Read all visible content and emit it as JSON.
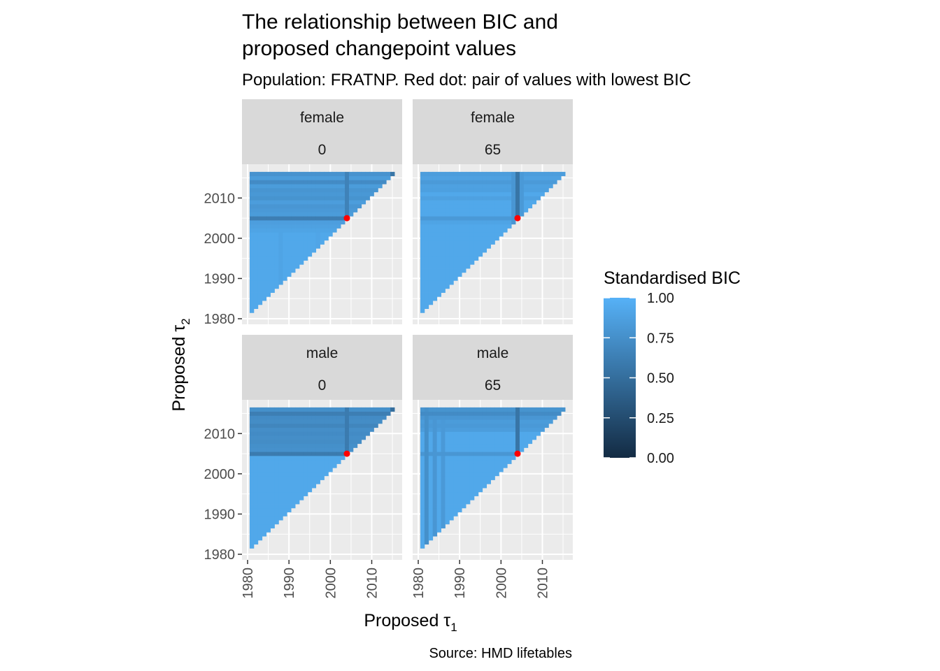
{
  "chart_data": {
    "type": "heatmap",
    "title_line1": "The relationship between BIC and",
    "title_line2": "proposed changepoint values",
    "subtitle": "Population: FRATNP. Red dot: pair of values with lowest BIC",
    "xlabel": "Proposed τ",
    "xlabel_sub": "1",
    "ylabel": "Proposed τ",
    "ylabel_sub": "2",
    "caption": "Source: HMD lifetables",
    "x_ticks": [
      "1980",
      "1990",
      "2000",
      "2010"
    ],
    "y_ticks": [
      "1980",
      "1990",
      "2000",
      "2010"
    ],
    "x_tick_values": [
      1980,
      1990,
      2000,
      2010
    ],
    "y_tick_values": [
      1980,
      1990,
      2000,
      2010
    ],
    "xlim": [
      1980,
      2016
    ],
    "ylim": [
      1980,
      2017
    ],
    "tau1_range": [
      1981,
      2015
    ],
    "tau2_offset": 1,
    "colors": {
      "low": "#132B43",
      "high": "#56B1F7",
      "min_point": "#FF0000",
      "panel_bg": "#EBEBEB",
      "strip_bg": "#D9D9D9",
      "grid": "#FFFFFF"
    },
    "legend": {
      "title": "Standardised BIC",
      "placement": "right",
      "ticks": [
        "1.00",
        "0.75",
        "0.50",
        "0.25",
        "0.00"
      ],
      "tick_values": [
        1.0,
        0.75,
        0.5,
        0.25,
        0.0
      ]
    },
    "panels": [
      {
        "sex": "female",
        "age": "0",
        "min_point": {
          "tau1": 2004,
          "tau2": 2005
        },
        "row_values": [
          {
            "tau2": 2016,
            "value": 0.77
          },
          {
            "tau2": 2015,
            "value": 0.84
          },
          {
            "tau2": 2014,
            "value": 0.72
          },
          {
            "tau2": 2013,
            "value": 0.84
          },
          {
            "tau2": 2012,
            "value": 0.79
          },
          {
            "tau2": 2011,
            "value": 0.81
          },
          {
            "tau2": 2010,
            "value": 0.78
          },
          {
            "tau2": 2009,
            "value": 0.85
          },
          {
            "tau2": 2008,
            "value": 0.8
          },
          {
            "tau2": 2007,
            "value": 0.82
          },
          {
            "tau2": 2006,
            "value": 0.84
          },
          {
            "tau2": 2005,
            "value": 0.62
          },
          {
            "tau2": 2004,
            "value": 0.86
          },
          {
            "tau2": 2003,
            "value": 0.88
          },
          {
            "tau2": 2002,
            "value": 0.9
          }
        ],
        "col_values": [
          {
            "tau1": 1988,
            "value": 0.9
          },
          {
            "tau1": 1997,
            "value": 0.91
          },
          {
            "tau1": 2004,
            "value": 0.65
          },
          {
            "tau1": 2015,
            "value": 0.55
          }
        ]
      },
      {
        "sex": "female",
        "age": "65",
        "min_point": {
          "tau1": 2004,
          "tau2": 2005
        },
        "row_values": [
          {
            "tau2": 2016,
            "value": 0.85
          },
          {
            "tau2": 2015,
            "value": 0.88
          },
          {
            "tau2": 2014,
            "value": 0.83
          },
          {
            "tau2": 2013,
            "value": 0.88
          },
          {
            "tau2": 2012,
            "value": 0.87
          },
          {
            "tau2": 2010,
            "value": 0.88
          },
          {
            "tau2": 2005,
            "value": 0.82
          },
          {
            "tau2": 2004,
            "value": 0.9
          }
        ],
        "col_values": [
          {
            "tau1": 2004,
            "value": 0.55
          },
          {
            "tau1": 2003,
            "value": 0.8
          },
          {
            "tau1": 2005,
            "value": 0.82
          }
        ]
      },
      {
        "sex": "male",
        "age": "0",
        "min_point": {
          "tau1": 2004,
          "tau2": 2005
        },
        "row_values": [
          {
            "tau2": 2016,
            "value": 0.75
          },
          {
            "tau2": 2015,
            "value": 0.62
          },
          {
            "tau2": 2014,
            "value": 0.72
          },
          {
            "tau2": 2013,
            "value": 0.73
          },
          {
            "tau2": 2012,
            "value": 0.68
          },
          {
            "tau2": 2011,
            "value": 0.74
          },
          {
            "tau2": 2010,
            "value": 0.72
          },
          {
            "tau2": 2009,
            "value": 0.74
          },
          {
            "tau2": 2008,
            "value": 0.73
          },
          {
            "tau2": 2007,
            "value": 0.75
          },
          {
            "tau2": 2006,
            "value": 0.76
          },
          {
            "tau2": 2005,
            "value": 0.6
          }
        ],
        "col_values": [
          {
            "tau1": 2004,
            "value": 0.6
          },
          {
            "tau1": 2015,
            "value": 0.5
          }
        ]
      },
      {
        "sex": "male",
        "age": "65",
        "min_point": {
          "tau1": 2004,
          "tau2": 2005
        },
        "row_values": [
          {
            "tau2": 2016,
            "value": 0.78
          },
          {
            "tau2": 2015,
            "value": 0.72
          },
          {
            "tau2": 2014,
            "value": 0.8
          },
          {
            "tau2": 2013,
            "value": 0.84
          },
          {
            "tau2": 2012,
            "value": 0.82
          },
          {
            "tau2": 2011,
            "value": 0.85
          },
          {
            "tau2": 2005,
            "value": 0.8
          }
        ],
        "col_values": [
          {
            "tau1": 2004,
            "value": 0.55
          },
          {
            "tau1": 1982,
            "value": 0.75
          },
          {
            "tau1": 1984,
            "value": 0.8
          },
          {
            "tau1": 1986,
            "value": 0.82
          }
        ]
      }
    ]
  }
}
